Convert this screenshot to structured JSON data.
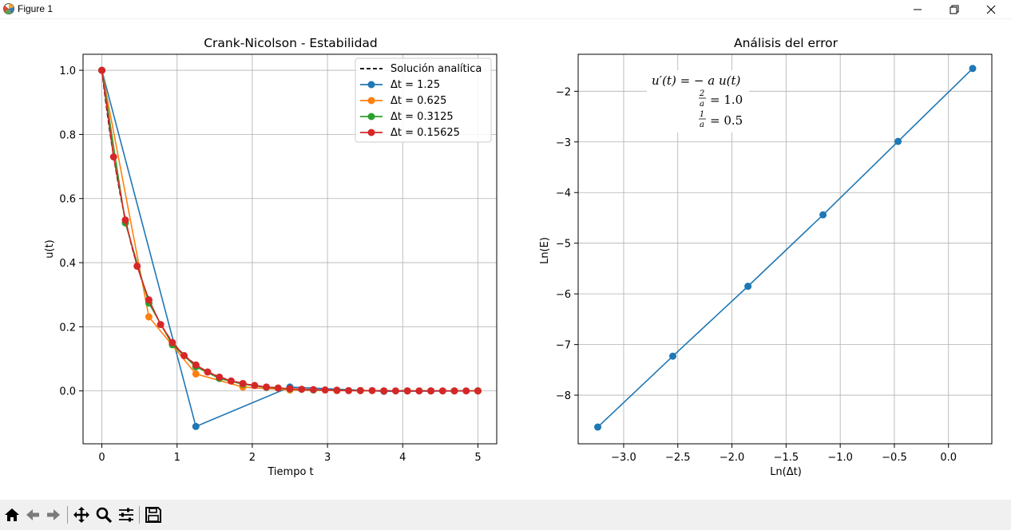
{
  "window": {
    "title": "Figure 1",
    "minimize_glyph": "—",
    "close_glyph": "✕"
  },
  "toolbar": {
    "items": [
      {
        "name": "home-icon"
      },
      {
        "name": "back-icon"
      },
      {
        "name": "forward-icon"
      },
      {
        "name": "pan-icon"
      },
      {
        "name": "zoom-icon"
      },
      {
        "name": "configure-subplots-icon"
      },
      {
        "name": "save-icon"
      }
    ]
  },
  "chart_data": [
    {
      "type": "line",
      "title": "Crank-Nicolson - Estabilidad",
      "xlabel": "Tiempo t",
      "ylabel": "u(t)",
      "xlim": [
        -0.25,
        5.25
      ],
      "ylim": [
        -0.165,
        1.05
      ],
      "xticks": [
        0,
        1,
        2,
        3,
        4,
        5
      ],
      "xtick_labels": [
        "0",
        "1",
        "2",
        "3",
        "4",
        "5"
      ],
      "yticks": [
        0.0,
        0.2,
        0.4,
        0.6,
        0.8,
        1.0
      ],
      "ytick_labels": [
        "0.0",
        "0.2",
        "0.4",
        "0.6",
        "0.8",
        "1.0"
      ],
      "grid": true,
      "legend_position": "upper right",
      "series": [
        {
          "name": "Solución analítica",
          "color": "#000000",
          "style": "dashed",
          "marker": false,
          "function": "exp(-2t)",
          "x_range": [
            0,
            5
          ]
        },
        {
          "name": "Δt = 1.25",
          "color": "#1f77b4",
          "marker": true,
          "x": [
            0,
            1.25,
            2.5,
            3.75,
            5.0
          ],
          "y": [
            1.0,
            -0.111,
            0.012,
            -0.0014,
            0.0002
          ]
        },
        {
          "name": "Δt = 0.625",
          "color": "#ff7f0e",
          "marker": true,
          "x": [
            0,
            0.625,
            1.25,
            1.875,
            2.5,
            3.125,
            3.75,
            4.375,
            5.0
          ],
          "y": [
            1.0,
            0.231,
            0.053,
            0.012,
            0.003,
            0.001,
            0.0,
            0.0,
            0.0
          ]
        },
        {
          "name": "Δt = 0.3125",
          "color": "#2ca02c",
          "marker": true,
          "x": [
            0,
            0.3125,
            0.625,
            0.9375,
            1.25,
            1.5625,
            1.875,
            2.1875,
            2.5,
            2.8125,
            3.125,
            3.4375,
            3.75,
            4.0625,
            4.375,
            4.6875,
            5.0
          ],
          "y": [
            1.0,
            0.524,
            0.274,
            0.144,
            0.075,
            0.039,
            0.021,
            0.011,
            0.006,
            0.003,
            0.002,
            0.001,
            0.0,
            0.0,
            0.0,
            0.0,
            0.0
          ]
        },
        {
          "name": "Δt = 0.15625",
          "color": "#d62728",
          "marker": true,
          "x": [
            0,
            0.15625,
            0.3125,
            0.46875,
            0.625,
            0.78125,
            0.9375,
            1.09375,
            1.25,
            1.40625,
            1.5625,
            1.71875,
            1.875,
            2.03125,
            2.1875,
            2.34375,
            2.5,
            2.65625,
            2.8125,
            2.96875,
            3.125,
            3.28125,
            3.4375,
            3.59375,
            3.75,
            3.90625,
            4.0625,
            4.21875,
            4.375,
            4.53125,
            4.6875,
            4.84375,
            5.0
          ],
          "y": [
            1.0,
            0.73,
            0.533,
            0.389,
            0.284,
            0.207,
            0.151,
            0.11,
            0.081,
            0.059,
            0.043,
            0.031,
            0.023,
            0.017,
            0.012,
            0.009,
            0.007,
            0.005,
            0.004,
            0.003,
            0.002,
            0.001,
            0.001,
            0.001,
            0.0,
            0.0,
            0.0,
            0.0,
            0.0,
            0.0,
            0.0,
            0.0,
            0.0
          ]
        }
      ]
    },
    {
      "type": "line",
      "title": "Análisis del error",
      "xlabel": "Ln(Δt)",
      "ylabel": "Ln(E)",
      "xlim": [
        -3.42,
        0.4
      ],
      "ylim": [
        -8.96,
        -1.27
      ],
      "xticks": [
        -3.0,
        -2.5,
        -2.0,
        -1.5,
        -1.0,
        -0.5,
        0.0
      ],
      "xtick_labels": [
        "−3.0",
        "−2.5",
        "−2.0",
        "−1.5",
        "−1.0",
        "−0.5",
        "0.0"
      ],
      "yticks": [
        -8,
        -7,
        -6,
        -5,
        -4,
        -3,
        -2
      ],
      "ytick_labels": [
        "−8",
        "−7",
        "−6",
        "−5",
        "−4",
        "−3",
        "−2"
      ],
      "grid": true,
      "series": [
        {
          "color": "#1f77b4",
          "marker": true,
          "x": [
            -3.239,
            -2.546,
            -1.852,
            -1.159,
            -0.466,
            0.223
          ],
          "y": [
            -8.63,
            -7.23,
            -5.85,
            -4.44,
            -2.99,
            -1.55
          ]
        }
      ],
      "annotations": {
        "equation": "u′(t) = − a u(t)",
        "two_over_a": "= 1.0",
        "one_over_a": "= 0.5",
        "frac_2": "2",
        "frac_1": "1",
        "frac_den": "a"
      }
    }
  ]
}
